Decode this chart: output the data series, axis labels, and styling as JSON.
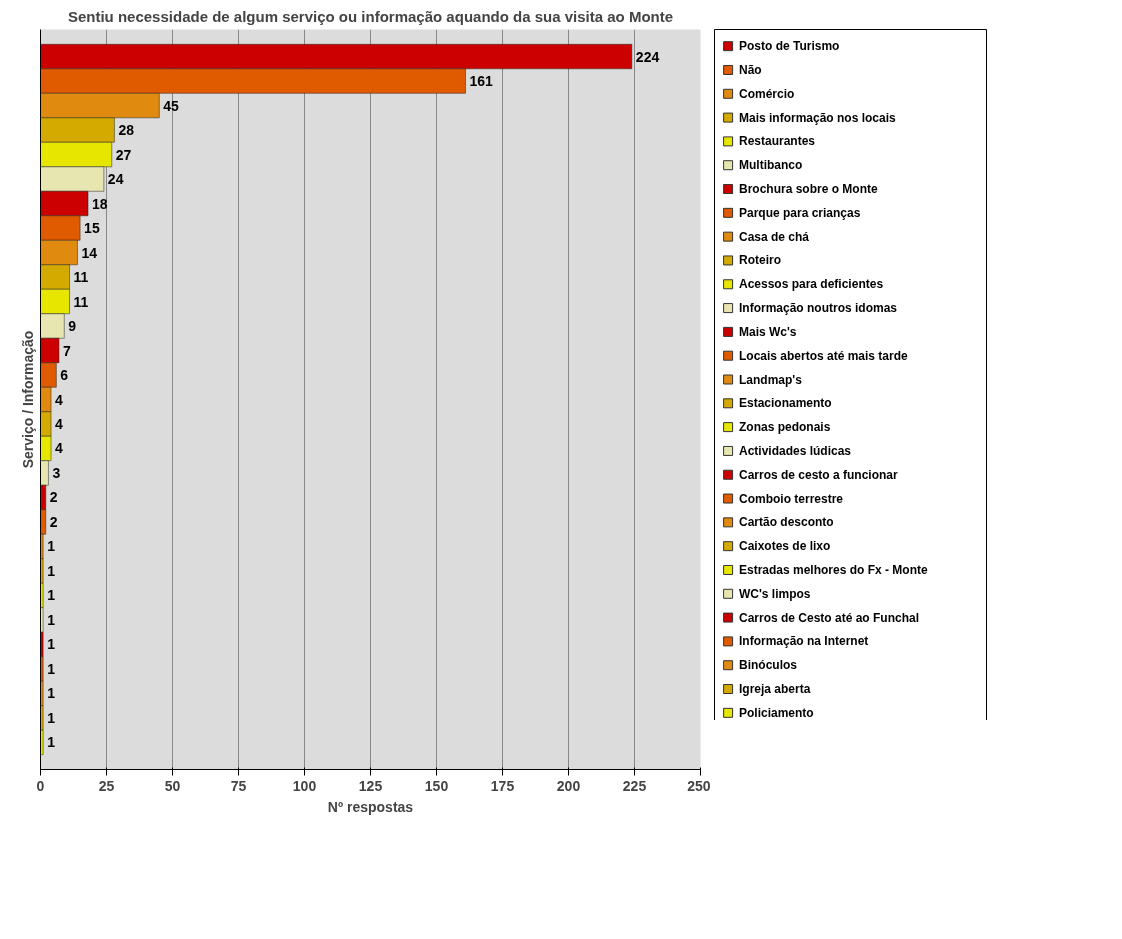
{
  "chart_data": {
    "type": "bar",
    "orientation": "horizontal",
    "title": "Sentiu necessidade de algum serviço ou informação aquando da sua visita ao Monte",
    "xlabel": "Nº respostas",
    "ylabel": "Serviço / Informação",
    "categories": [
      null
    ],
    "xlim": [
      0,
      250
    ],
    "xticks": [
      0,
      25,
      50,
      75,
      100,
      125,
      150,
      175,
      200,
      225,
      250
    ],
    "grid": "x",
    "legend": "right",
    "data_labels": true,
    "series": [
      {
        "name": "Posto de Turismo",
        "color": "#cc0000",
        "values": [
          224
        ]
      },
      {
        "name": "Não",
        "color": "#e05a00",
        "values": [
          161
        ]
      },
      {
        "name": "Comércio",
        "color": "#e08a10",
        "values": [
          45
        ]
      },
      {
        "name": "Mais informação nos locais",
        "color": "#d4aa00",
        "values": [
          28
        ]
      },
      {
        "name": "Restaurantes",
        "color": "#e6e600",
        "values": [
          27
        ]
      },
      {
        "name": "Multibanco",
        "color": "#e8e6b0",
        "values": [
          24
        ]
      },
      {
        "name": "Brochura sobre o Monte",
        "color": "#cc0000",
        "values": [
          18
        ]
      },
      {
        "name": "Parque para crianças",
        "color": "#e05a00",
        "values": [
          15
        ]
      },
      {
        "name": "Casa de chá",
        "color": "#e08a10",
        "values": [
          14
        ]
      },
      {
        "name": "Roteiro",
        "color": "#d4aa00",
        "values": [
          11
        ]
      },
      {
        "name": "Acessos para deficientes",
        "color": "#e6e600",
        "values": [
          11
        ]
      },
      {
        "name": "Informação noutros idomas",
        "color": "#e8e6b0",
        "values": [
          9
        ]
      },
      {
        "name": "Mais Wc's",
        "color": "#cc0000",
        "values": [
          7
        ]
      },
      {
        "name": "Locais abertos até mais tarde",
        "color": "#e05a00",
        "values": [
          6
        ]
      },
      {
        "name": "Landmap's",
        "color": "#e08a10",
        "values": [
          4
        ]
      },
      {
        "name": "Estacionamento",
        "color": "#d4aa00",
        "values": [
          4
        ]
      },
      {
        "name": "Zonas pedonais",
        "color": "#e6e600",
        "values": [
          4
        ]
      },
      {
        "name": "Actividades lúdicas",
        "color": "#e8e6b0",
        "values": [
          3
        ]
      },
      {
        "name": "Carros de cesto a funcionar",
        "color": "#cc0000",
        "values": [
          2
        ]
      },
      {
        "name": "Comboio terrestre",
        "color": "#e05a00",
        "values": [
          2
        ]
      },
      {
        "name": "Cartão desconto",
        "color": "#e08a10",
        "values": [
          1
        ]
      },
      {
        "name": "Caixotes de lixo",
        "color": "#d4aa00",
        "values": [
          1
        ]
      },
      {
        "name": "Estradas melhores do Fx - Monte",
        "color": "#e6e600",
        "values": [
          1
        ]
      },
      {
        "name": "WC's limpos",
        "color": "#e8e6b0",
        "values": [
          1
        ]
      },
      {
        "name": "Carros de Cesto até ao Funchal",
        "color": "#cc0000",
        "values": [
          1
        ]
      },
      {
        "name": "Informação na Internet",
        "color": "#e05a00",
        "values": [
          1
        ]
      },
      {
        "name": "Binóculos",
        "color": "#e08a10",
        "values": [
          1
        ]
      },
      {
        "name": "Igreja aberta",
        "color": "#d4aa00",
        "values": [
          1
        ]
      },
      {
        "name": "Policiamento",
        "color": "#e6e600",
        "values": [
          1
        ]
      }
    ]
  }
}
